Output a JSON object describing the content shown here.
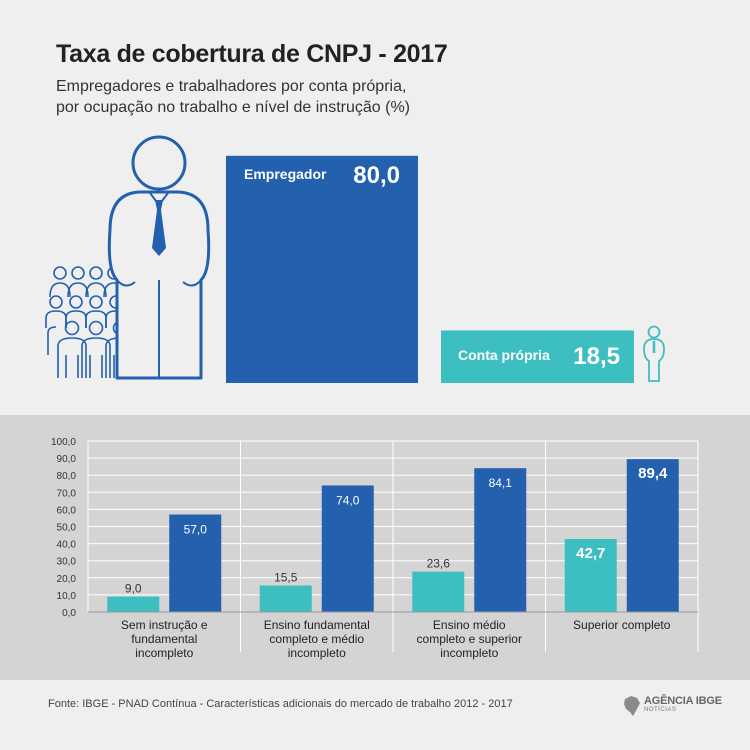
{
  "header": {
    "title": "Taxa de cobertura de CNPJ - 2017",
    "subtitle_lines": [
      "Empregadores e trabalhadores por conta própria,",
      "por ocupação no trabalho e nível de instrução (%)"
    ]
  },
  "chart_data": [
    {
      "type": "bar",
      "title": "",
      "categories": [
        "Empregador",
        "Conta própria"
      ],
      "values": [
        80.0,
        18.5
      ],
      "value_labels": [
        "80,0",
        "18,5"
      ],
      "colors": [
        "#2360ad",
        "#3dbfc1"
      ]
    },
    {
      "type": "bar",
      "title": "",
      "categories": [
        [
          "Sem instrução e",
          "fundamental",
          "incompleto"
        ],
        [
          "Ensino fundamental",
          "completo e médio",
          "incompleto"
        ],
        [
          "Ensino médio",
          "completo e superior",
          "incompleto"
        ],
        [
          "Superior completo"
        ]
      ],
      "series": [
        {
          "values": [
            9.0,
            15.5,
            23.6,
            42.7
          ],
          "labels": [
            "9,0",
            "15,5",
            "23,6",
            "42,7"
          ],
          "color": "#3dbfc1"
        },
        {
          "values": [
            57.0,
            74.0,
            84.1,
            89.4
          ],
          "labels": [
            "57,0",
            "74,0",
            "84,1",
            "89,4"
          ],
          "color": "#2360ad"
        }
      ],
      "highlight_category": 3,
      "yticks": [
        "0,0",
        "10,0",
        "20,0",
        "30,0",
        "40,0",
        "50,0",
        "60,0",
        "70,0",
        "80,0",
        "90,0",
        "100,0"
      ],
      "ylim": [
        0,
        100
      ],
      "grid": true
    }
  ],
  "footer": {
    "source": "Fonte: IBGE - PNAD Contínua - Características adicionais do mercado de trabalho 2012 - 2017",
    "logo_main": "AGÊNCIA IBGE",
    "logo_sub": "NOTÍCIAS"
  }
}
